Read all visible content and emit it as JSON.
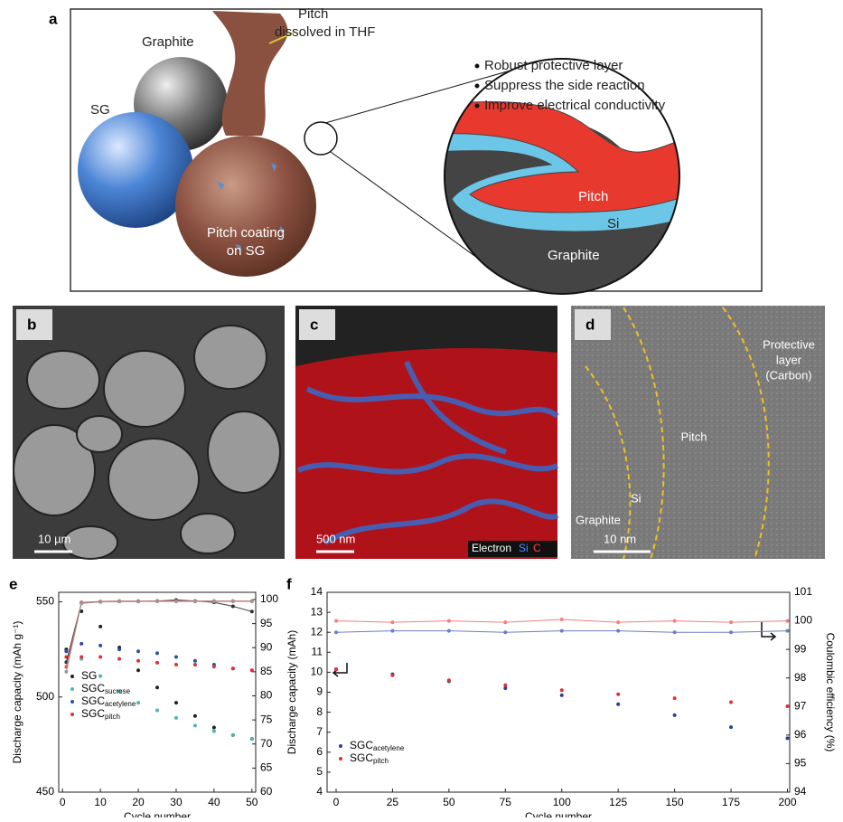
{
  "panels": {
    "a": {
      "label": "a",
      "graphite": "Graphite",
      "sg": "SG",
      "pitch_label": [
        "Pitch",
        "dissolved in THF"
      ],
      "coating": [
        "Pitch coating",
        "on SG"
      ],
      "bullets": [
        "Robust protective layer",
        "Suppress the side reaction",
        "Improve electrical conductivity"
      ],
      "zoom": {
        "pitch": "Pitch",
        "si": "Si",
        "graphite": "Graphite"
      }
    },
    "b": {
      "label": "b",
      "scale": "10 µm"
    },
    "c": {
      "label": "c",
      "scale": "500 nm",
      "legend": [
        "Electron",
        "Si",
        "C"
      ]
    },
    "d": {
      "label": "d",
      "protective": [
        "Protective",
        "layer",
        "(Carbon)"
      ],
      "pitch": "Pitch",
      "si": "Si",
      "graphite": "Graphite",
      "scale": "10 nm"
    }
  },
  "chart_data": [
    {
      "type": "scatter",
      "label": "e",
      "x_label": "Cycle number",
      "y_label": "Discharge capacity   (mAh g⁻¹)",
      "x": [
        1,
        5,
        10,
        15,
        20,
        25,
        30,
        35,
        40,
        45,
        50
      ],
      "xlim": [
        -1,
        51
      ],
      "xticks": [
        0,
        10,
        20,
        30,
        40,
        50
      ],
      "ylim": [
        450,
        555
      ],
      "yticks": [
        450,
        500,
        550
      ],
      "y2lim": [
        60,
        101.5
      ],
      "y2ticks": [
        60,
        65,
        70,
        75,
        80,
        85,
        90,
        95,
        100
      ],
      "legend": "lower left",
      "series": [
        {
          "name": "SG",
          "color": "#222222",
          "values": [
            525,
            545,
            537,
            526,
            514,
            505,
            497,
            490,
            484,
            480,
            478
          ]
        },
        {
          "name": "SGC",
          "subscript": "sucrose",
          "color": "#4fb3b3",
          "values": [
            524,
            520,
            511,
            503,
            497,
            493,
            489,
            485,
            482,
            480,
            478
          ]
        },
        {
          "name": "SGC",
          "subscript": "acetylene",
          "color": "#2b4fa8",
          "values": [
            524,
            528,
            527,
            525,
            524,
            523,
            521,
            519,
            517,
            515,
            514
          ]
        },
        {
          "name": "SGC",
          "subscript": "pitch",
          "color": "#e03030",
          "values": [
            521,
            521,
            521,
            520,
            519,
            518,
            517,
            517,
            516,
            515,
            514
          ]
        },
        {
          "axis": "y2",
          "color": "#333333",
          "values": [
            87,
            99.3,
            99.5,
            99.6,
            99.6,
            99.7,
            99.9,
            99.7,
            99.4,
            98.6,
            97.5
          ]
        },
        {
          "axis": "y2",
          "color": "#e05050",
          "values": [
            86,
            99.4,
            99.6,
            99.7,
            99.7,
            99.7,
            99.7,
            99.7,
            99.7,
            99.7,
            99.7
          ]
        },
        {
          "axis": "y2",
          "color": "#999999",
          "values": [
            85,
            99.2,
            99.5,
            99.6,
            99.6,
            99.6,
            99.6,
            99.6,
            99.6,
            99.6,
            99.6
          ]
        }
      ]
    },
    {
      "type": "scatter",
      "label": "f",
      "x_label": "Cycle number",
      "y_label": "Discharge capacity (mAh)",
      "y2_label": "Coulombic efficiency (%)",
      "x": [
        0,
        25,
        50,
        75,
        100,
        125,
        150,
        175,
        200
      ],
      "xlim": [
        -4,
        201
      ],
      "xticks": [
        0,
        25,
        50,
        75,
        100,
        125,
        150,
        175,
        200
      ],
      "ylim": [
        4,
        14
      ],
      "yticks": [
        4,
        5,
        6,
        7,
        8,
        9,
        10,
        11,
        12,
        13,
        14
      ],
      "y2lim": [
        94,
        101
      ],
      "y2ticks": [
        94,
        95,
        96,
        97,
        98,
        99,
        100,
        101
      ],
      "legend": "lower left",
      "series": [
        {
          "name": "SGC",
          "subscript": "acetylene",
          "color": "#2b3f8f",
          "values": [
            10.15,
            9.9,
            9.55,
            9.2,
            8.85,
            8.4,
            7.85,
            7.25,
            6.7
          ]
        },
        {
          "name": "SGC",
          "subscript": "pitch",
          "color": "#e03030",
          "values": [
            10.15,
            9.85,
            9.6,
            9.35,
            9.1,
            8.9,
            8.7,
            8.5,
            8.3
          ]
        },
        {
          "axis": "y2",
          "color": "#6a7fc0",
          "values": [
            99.6,
            99.65,
            99.65,
            99.6,
            99.65,
            99.65,
            99.6,
            99.6,
            99.65
          ]
        },
        {
          "axis": "y2",
          "color": "#f08080",
          "values": [
            100,
            99.95,
            100,
            99.95,
            100.05,
            99.95,
            100,
            99.95,
            100
          ]
        }
      ]
    }
  ]
}
